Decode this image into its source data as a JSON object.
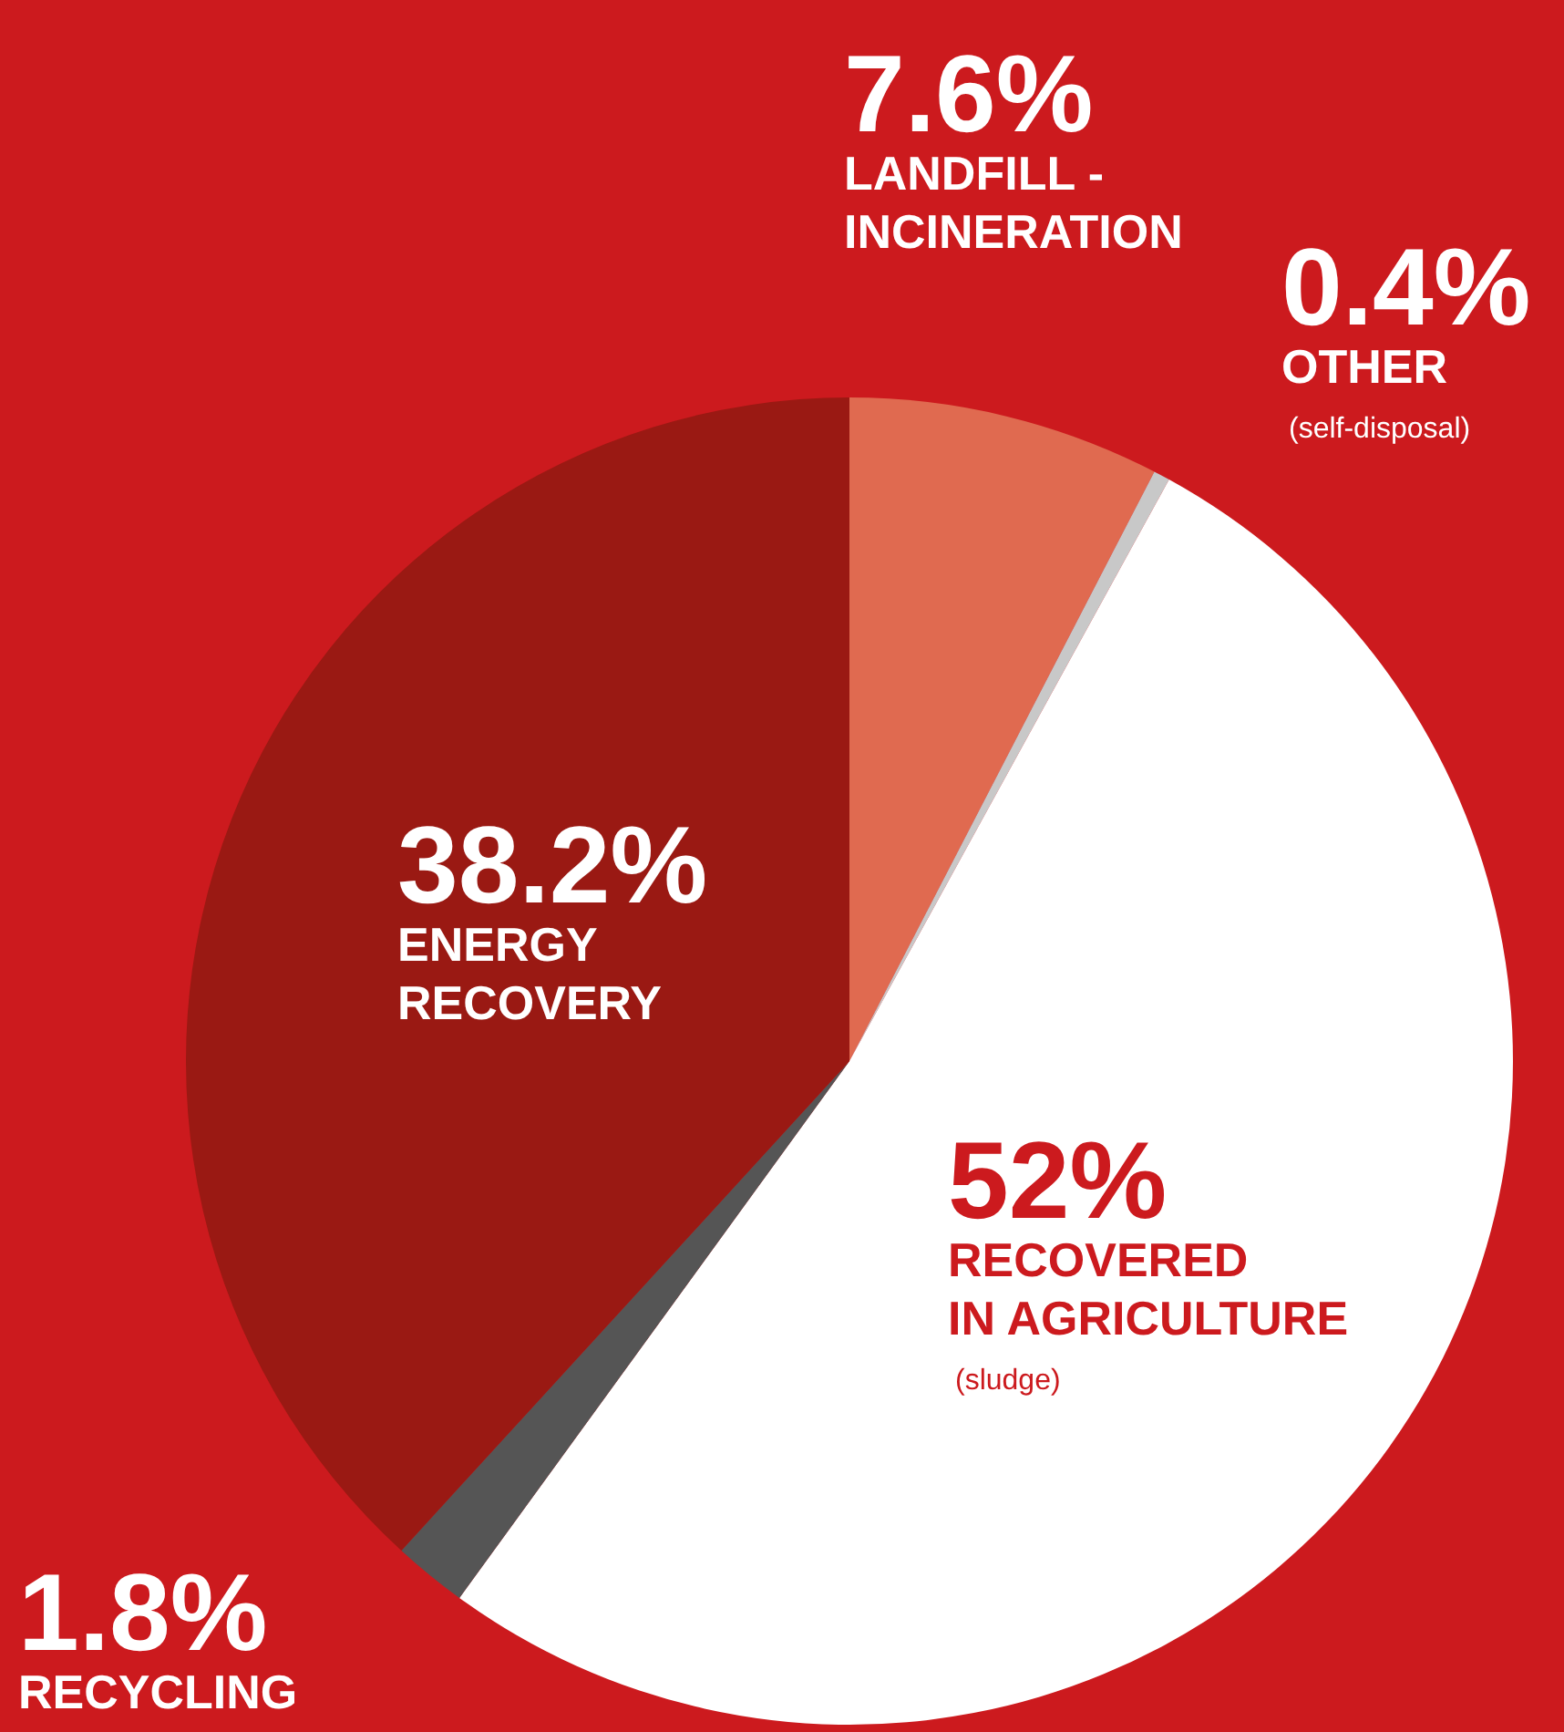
{
  "chart_data": {
    "type": "pie",
    "categories": [
      "LANDFILL - INCINERATION",
      "OTHER",
      "RECOVERED IN AGRICULTURE",
      "RECYCLING",
      "ENERGY RECOVERY"
    ],
    "values": [
      7.6,
      0.4,
      52,
      1.8,
      38.2
    ],
    "colors": [
      "#e06a50",
      "#c8c8c8",
      "#ffffff",
      "#555555",
      "#9a1913"
    ],
    "value_labels": [
      "7.6%",
      "0.4%",
      "52%",
      "1.8%",
      "38.2%"
    ],
    "annotations": [
      "(self-disposal)",
      "(sludge)"
    ]
  }
}
